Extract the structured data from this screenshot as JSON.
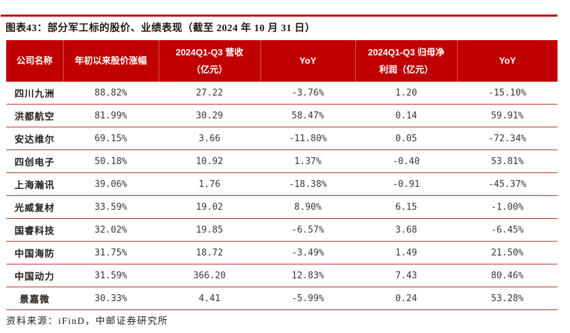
{
  "title": "图表43：部分军工标的股价、业绩表现（截至 2024 年 10 月 31 日）",
  "source": "资料来源：iFinD，中邮证券研究所",
  "colors": {
    "accent_red": "#c00000",
    "header_divider": "#d05a4a",
    "row_divider": "#b5332a",
    "header_text": "#ffffff",
    "body_text": "#3a3631"
  },
  "chart_data": {
    "type": "table",
    "title": "部分军工标的股价、业绩表现（截至 2024 年 10 月 31 日）",
    "columns": [
      "公司名称",
      "年初以来股价涨幅",
      "2024Q1-Q3 营收（亿元）",
      "YoY",
      "2024Q1-Q3 归母净利润（亿元）",
      "YoY"
    ],
    "rows": [
      [
        "四川九洲",
        "88.82%",
        "27.22",
        "-3.76%",
        "1.20",
        "-15.10%"
      ],
      [
        "洪都航空",
        "81.99%",
        "30.29",
        "58.47%",
        "0.14",
        "59.91%"
      ],
      [
        "安达维尔",
        "69.15%",
        "3.66",
        "-11.80%",
        "0.05",
        "-72.34%"
      ],
      [
        "四创电子",
        "50.18%",
        "10.92",
        "1.37%",
        "-0.40",
        "53.81%"
      ],
      [
        "上海瀚讯",
        "39.06%",
        "1.76",
        "-18.38%",
        "-0.91",
        "-45.37%"
      ],
      [
        "光威复材",
        "33.59%",
        "19.02",
        "8.90%",
        "6.15",
        "-1.00%"
      ],
      [
        "国睿科技",
        "32.02%",
        "19.85",
        "-6.57%",
        "3.68",
        "-6.45%"
      ],
      [
        "中国海防",
        "31.75%",
        "18.72",
        "-3.49%",
        "1.49",
        "21.50%"
      ],
      [
        "中国动力",
        "31.59%",
        "366.20",
        "12.83%",
        "7.43",
        "80.46%"
      ],
      [
        "景嘉微",
        "30.33%",
        "4.41",
        "-5.99%",
        "0.24",
        "53.28%"
      ]
    ]
  },
  "table": {
    "headers": [
      {
        "lines": [
          "公司名称"
        ]
      },
      {
        "lines": [
          "年初以来股价涨幅"
        ]
      },
      {
        "lines": [
          "2024Q1-Q3 营收",
          "（亿元）"
        ]
      },
      {
        "lines": [
          "YoY"
        ]
      },
      {
        "lines": [
          "2024Q1-Q3 归母净",
          "利润（亿元）"
        ]
      },
      {
        "lines": [
          "YoY"
        ]
      }
    ],
    "rows": [
      [
        "四川九洲",
        "88.82%",
        "27.22",
        "-3.76%",
        "1.20",
        "-15.10%"
      ],
      [
        "洪都航空",
        "81.99%",
        "30.29",
        "58.47%",
        "0.14",
        "59.91%"
      ],
      [
        "安达维尔",
        "69.15%",
        "3.66",
        "-11.80%",
        "0.05",
        "-72.34%"
      ],
      [
        "四创电子",
        "50.18%",
        "10.92",
        "1.37%",
        "-0.40",
        "53.81%"
      ],
      [
        "上海瀚讯",
        "39.06%",
        "1.76",
        "-18.38%",
        "-0.91",
        "-45.37%"
      ],
      [
        "光威复材",
        "33.59%",
        "19.02",
        "8.90%",
        "6.15",
        "-1.00%"
      ],
      [
        "国睿科技",
        "32.02%",
        "19.85",
        "-6.57%",
        "3.68",
        "-6.45%"
      ],
      [
        "中国海防",
        "31.75%",
        "18.72",
        "-3.49%",
        "1.49",
        "21.50%"
      ],
      [
        "中国动力",
        "31.59%",
        "366.20",
        "12.83%",
        "7.43",
        "80.46%"
      ],
      [
        "景嘉微",
        "30.33%",
        "4.41",
        "-5.99%",
        "0.24",
        "53.28%"
      ]
    ]
  }
}
